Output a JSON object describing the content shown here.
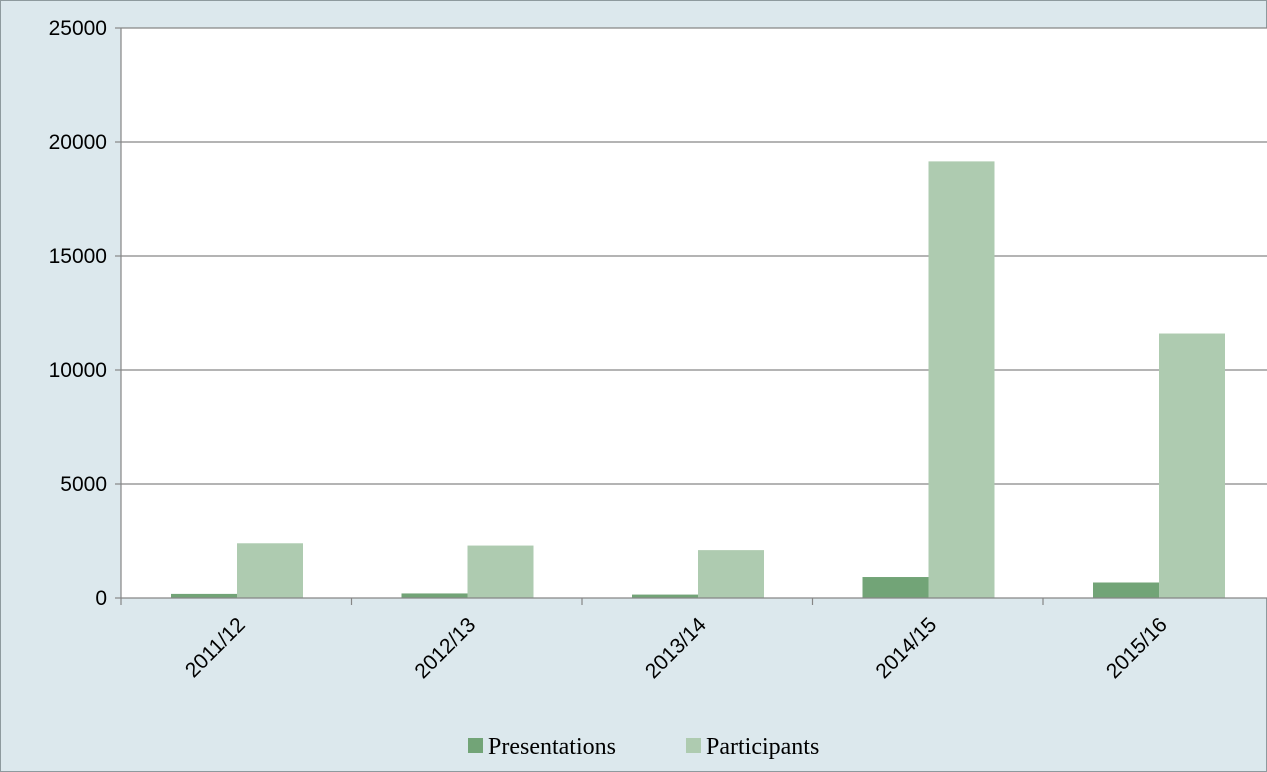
{
  "colors": {
    "presentations": "#72a477",
    "participants": "#aecbb0",
    "plot_bg": "#ffffff",
    "frame_bg": "#dce8ed",
    "gridline": "#868686"
  },
  "legend": {
    "presentations_label": "Presentations",
    "participants_label": "Participants",
    "position": "bottom"
  },
  "chart_data": {
    "type": "bar",
    "categories": [
      "2011/12",
      "2012/13",
      "2013/14",
      "2014/15",
      "2015/16"
    ],
    "series": [
      {
        "name": "Presentations",
        "values": [
          180,
          200,
          150,
          920,
          680
        ]
      },
      {
        "name": "Participants",
        "values": [
          2400,
          2300,
          2100,
          19150,
          11600
        ]
      }
    ],
    "yticks": [
      0,
      5000,
      10000,
      15000,
      20000,
      25000
    ],
    "ylim": [
      0,
      25000
    ],
    "grid": true
  }
}
